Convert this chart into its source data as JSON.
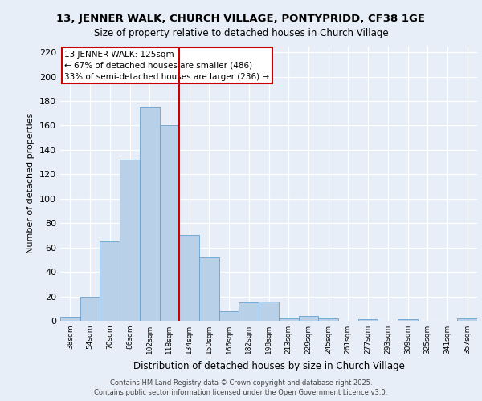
{
  "title1": "13, JENNER WALK, CHURCH VILLAGE, PONTYPRIDD, CF38 1GE",
  "title2": "Size of property relative to detached houses in Church Village",
  "xlabel": "Distribution of detached houses by size in Church Village",
  "ylabel": "Number of detached properties",
  "bar_labels": [
    "38sqm",
    "54sqm",
    "70sqm",
    "86sqm",
    "102sqm",
    "118sqm",
    "134sqm",
    "150sqm",
    "166sqm",
    "182sqm",
    "198sqm",
    "213sqm",
    "229sqm",
    "245sqm",
    "261sqm",
    "277sqm",
    "293sqm",
    "309sqm",
    "325sqm",
    "341sqm",
    "357sqm"
  ],
  "bar_values": [
    3,
    20,
    65,
    132,
    175,
    160,
    70,
    52,
    8,
    15,
    16,
    2,
    4,
    2,
    0,
    1,
    0,
    1,
    0,
    0,
    2
  ],
  "bar_color": "#b8d0e8",
  "bar_edge_color": "#6aa0cc",
  "vline_color": "#cc0000",
  "yticks": [
    0,
    20,
    40,
    60,
    80,
    100,
    120,
    140,
    160,
    180,
    200,
    220
  ],
  "ylim": [
    0,
    225
  ],
  "annotation_label": "13 JENNER WALK: 125sqm",
  "annotation_line1": "← 67% of detached houses are smaller (486)",
  "annotation_line2": "33% of semi-detached houses are larger (236) →",
  "footer1": "Contains HM Land Registry data © Crown copyright and database right 2025.",
  "footer2": "Contains public sector information licensed under the Open Government Licence v3.0.",
  "bg_color": "#e8eef8",
  "fig_color": "#e8eef8",
  "grid_color": "#ffffff",
  "vline_x": 5.5
}
